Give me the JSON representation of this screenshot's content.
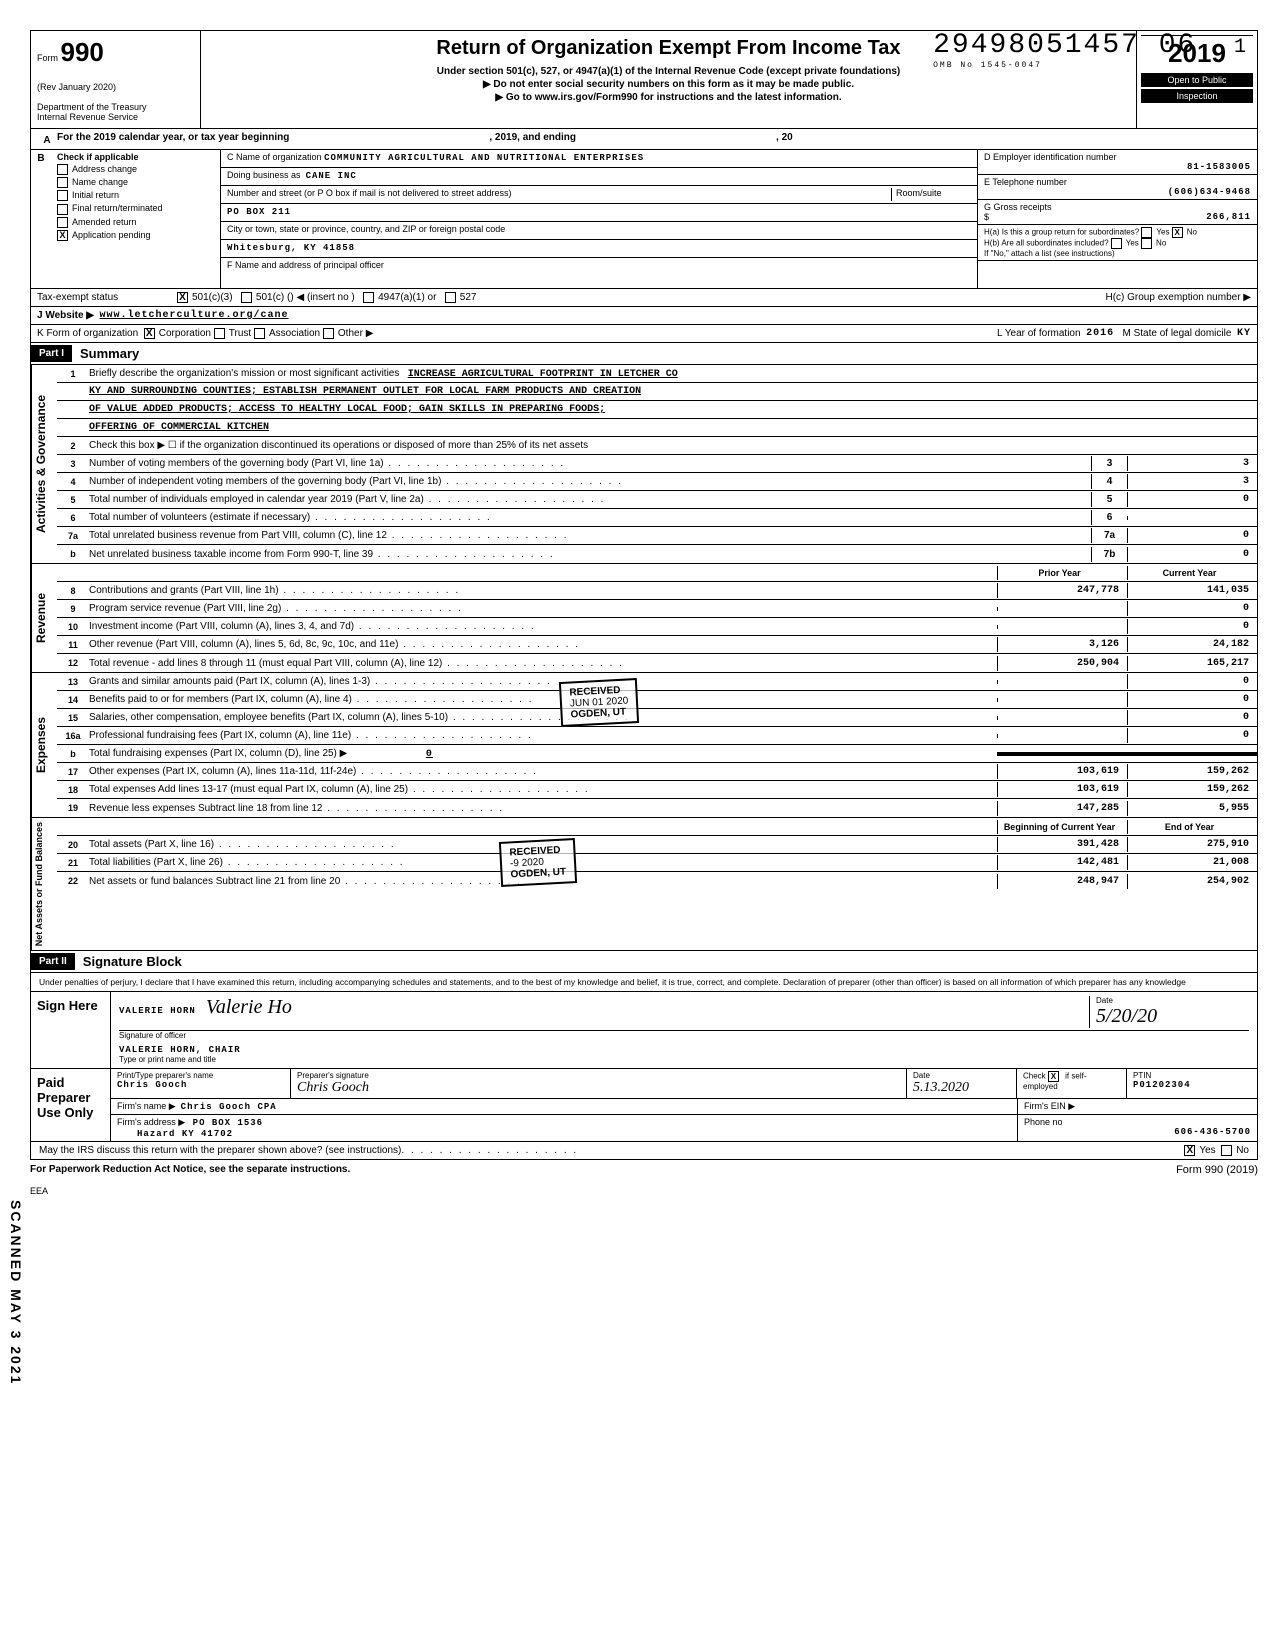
{
  "header": {
    "dln": "29498051457 06",
    "page_index": "1",
    "omb": "OMB No 1545-0047",
    "form_label": "Form",
    "form_number": "990",
    "rev": "(Rev January 2020)",
    "dept": "Department of the Treasury",
    "irs": "Internal Revenue Service",
    "title": "Return of Organization Exempt From Income Tax",
    "subtitle1": "Under section 501(c), 527, or 4947(a)(1) of the Internal Revenue Code (except private foundations)",
    "subtitle2": "▶ Do not enter social security numbers on this form as it may be made public.",
    "subtitle3": "▶ Go to www.irs.gov/Form990 for instructions and the latest information.",
    "year": "2019",
    "open_public": "Open to Public",
    "inspection": "Inspection"
  },
  "lineA": {
    "text_pre": "For the 2019 calendar year, or tax year beginning",
    "text_mid": ", 2019, and ending",
    "text_post": ", 20"
  },
  "checkboxes": {
    "header": "Check if applicable",
    "items": [
      "Address change",
      "Name change",
      "Initial return",
      "Final return/terminated",
      "Amended return",
      "Application pending"
    ],
    "app_pending_checked": "X"
  },
  "org": {
    "name_label": "C  Name of organization",
    "name": "COMMUNITY AGRICULTURAL AND NUTRITIONAL ENTERPRISES",
    "dba_label": "Doing business as",
    "dba": "CANE INC",
    "street_label": "Number and street (or P O box if mail is not delivered to street address)",
    "street": "PO BOX 211",
    "room_label": "Room/suite",
    "city_label": "City or town, state or province, country, and ZIP or foreign postal code",
    "city": "Whitesburg, KY 41858",
    "officer_label": "F  Name and address of principal officer",
    "ein_label": "D  Employer identification number",
    "ein": "81-1583005",
    "phone_label": "E  Telephone number",
    "phone": "(606)634-9468",
    "gross_label": "G  Gross receipts",
    "gross_symbol": "$",
    "gross": "266,811"
  },
  "groupH": {
    "a": "H(a) Is this a group return for subordinates?",
    "b": "H(b) Are all subordinates included?",
    "no_note": "If \"No,\" attach a list (see instructions)",
    "c": "H(c)  Group exemption number  ▶",
    "yes": "Yes",
    "no": "No",
    "ha_no_checked": "X"
  },
  "status": {
    "label": "Tax-exempt status",
    "c3_checked": "X",
    "opt1": "501(c)(3)",
    "opt2": "501(c) (",
    "opt2b": ")  ◀ (insert no )",
    "opt3": "4947(a)(1) or",
    "opt4": "527"
  },
  "website": {
    "label": "J     Website ▶",
    "value": "www.letcherculture.org/cane"
  },
  "orgform": {
    "label": "K     Form of organization",
    "corp_checked": "X",
    "corp": "Corporation",
    "trust": "Trust",
    "assoc": "Association",
    "other": "Other ▶",
    "year_label": "L  Year of formation",
    "year": "2016",
    "state_label": "M  State of legal domicile",
    "state": "KY"
  },
  "part1": {
    "label": "Part I",
    "title": "Summary"
  },
  "activities": {
    "label": "Activities & Governance",
    "line1_text": "Briefly describe the organization's mission or most significant activities",
    "mission1": "INCREASE AGRICULTURAL FOOTPRINT IN LETCHER CO",
    "mission2": "KY AND SURROUNDING COUNTIES; ESTABLISH PERMANENT OUTLET FOR LOCAL FARM PRODUCTS AND CREATION",
    "mission3": "OF VALUE ADDED PRODUCTS; ACCESS TO HEALTHY LOCAL FOOD; GAIN SKILLS IN PREPARING FOODS;",
    "mission4": "OFFERING OF COMMERCIAL KITCHEN",
    "line2": "Check this box ▶ ☐ if the organization discontinued its operations or disposed of more than 25% of its net assets",
    "line3": "Number of voting members of the governing body (Part VI, line 1a)",
    "line4": "Number of independent voting members of the governing body (Part VI, line 1b)",
    "line5": "Total number of individuals employed in calendar year 2019 (Part V, line 2a)",
    "line6": "Total number of volunteers (estimate if necessary)",
    "line7a": "Total unrelated business revenue from Part VIII, column (C), line 12",
    "line7b": "Net unrelated business taxable income from Form 990-T, line 39",
    "v3": "3",
    "v4": "3",
    "v5": "0",
    "v6": "",
    "v7a": "0",
    "v7b": "0"
  },
  "stamps": {
    "received": "RECEIVED",
    "date1": "JUN 01 2020",
    "loc1": "OGDEN, UT",
    "date2": "-9 2020",
    "loc2": "OGDEN, UT"
  },
  "revenue": {
    "label": "Revenue",
    "prior_hdr": "Prior Year",
    "current_hdr": "Current Year",
    "lines": [
      {
        "n": "8",
        "t": "Contributions and grants (Part VIII, line 1h)",
        "p": "247,778",
        "c": "141,035"
      },
      {
        "n": "9",
        "t": "Program service revenue (Part VIII, line 2g)",
        "p": "",
        "c": "0"
      },
      {
        "n": "10",
        "t": "Investment income (Part VIII, column (A), lines 3, 4, and 7d)",
        "p": "",
        "c": "0"
      },
      {
        "n": "11",
        "t": "Other revenue (Part VIII, column (A), lines 5, 6d, 8c, 9c, 10c, and 11e)",
        "p": "3,126",
        "c": "24,182"
      },
      {
        "n": "12",
        "t": "Total revenue - add lines 8 through 11 (must equal Part VIII, column (A), line 12)",
        "p": "250,904",
        "c": "165,217"
      }
    ]
  },
  "expenses": {
    "label": "Expenses",
    "lines": [
      {
        "n": "13",
        "t": "Grants and similar amounts paid (Part IX, column (A), lines 1-3)",
        "p": "",
        "c": "0"
      },
      {
        "n": "14",
        "t": "Benefits paid to or for members (Part IX, column (A), line 4)",
        "p": "",
        "c": "0"
      },
      {
        "n": "15",
        "t": "Salaries, other compensation, employee benefits (Part IX, column (A), lines 5-10)",
        "p": "",
        "c": "0"
      },
      {
        "n": "16a",
        "t": "Professional fundraising fees (Part IX, column (A), line 11e)",
        "p": "",
        "c": "0"
      }
    ],
    "line_b": {
      "n": "b",
      "t": "Total fundraising expenses (Part IX, column (D), line 25) ▶",
      "v": "0"
    },
    "lines2": [
      {
        "n": "17",
        "t": "Other expenses (Part IX, column (A), lines 11a-11d, 11f-24e)",
        "p": "103,619",
        "c": "159,262"
      },
      {
        "n": "18",
        "t": "Total expenses  Add lines 13-17 (must equal Part IX, column (A), line 25)",
        "p": "103,619",
        "c": "159,262"
      },
      {
        "n": "19",
        "t": "Revenue less expenses  Subtract line 18 from line 12",
        "p": "147,285",
        "c": "5,955"
      }
    ]
  },
  "netassets": {
    "label": "Net Assets or Fund Balances",
    "hdr1": "Beginning of Current Year",
    "hdr2": "End of Year",
    "lines": [
      {
        "n": "20",
        "t": "Total assets (Part X, line 16)",
        "p": "391,428",
        "c": "275,910"
      },
      {
        "n": "21",
        "t": "Total liabilities (Part X, line 26)",
        "p": "142,481",
        "c": "21,008"
      },
      {
        "n": "22",
        "t": "Net assets or fund balances  Subtract line 21 from line 20",
        "p": "248,947",
        "c": "254,902"
      }
    ]
  },
  "part2": {
    "label": "Part II",
    "title": "Signature Block"
  },
  "penalty_text": "Under penalties of perjury, I declare that I have examined this return, including accompanying schedules and statements, and to the best of my knowledge and belief, it is true, correct, and complete. Declaration of preparer (other than officer) is based on all information of which preparer has any knowledge",
  "sign": {
    "here": "Sign Here",
    "sig_name": "VALERIE HORN",
    "sig_cursive": "Valerie Ho",
    "sig_label": "Signature of officer",
    "print_name": "VALERIE HORN, CHAIR",
    "print_label": "Type or print name and title",
    "date_label": "Date",
    "date": "5/20/20"
  },
  "preparer": {
    "label1": "Paid",
    "label2": "Preparer",
    "label3": "Use Only",
    "print_label": "Print/Type preparer's name",
    "name": "Chris Gooch",
    "sig_label": "Preparer's signature",
    "sig": "Chris Gooch",
    "date": "5.13.2020",
    "check_label": "Check",
    "check_x": "X",
    "self_emp": "if self-employed",
    "ptin_label": "PTIN",
    "ptin": "P01202304",
    "firm_label": "Firm's name  ▶",
    "firm": "Chris Gooch CPA",
    "ein_label": "Firm's EIN ▶",
    "addr_label": "Firm's address ▶",
    "addr1": "PO BOX 1536",
    "addr2": "Hazard KY 41702",
    "phone_label": "Phone no",
    "phone": "606-436-5700"
  },
  "footer": {
    "discuss": "May the IRS discuss this return with the preparer shown above? (see instructions)",
    "yes": "Yes",
    "no": "No",
    "yes_checked": "X",
    "pra": "For Paperwork Reduction Act Notice, see the separate instructions.",
    "eea": "EEA",
    "form": "Form 990 (2019)"
  },
  "side_scan": "SCANNED MAY 3 2021"
}
